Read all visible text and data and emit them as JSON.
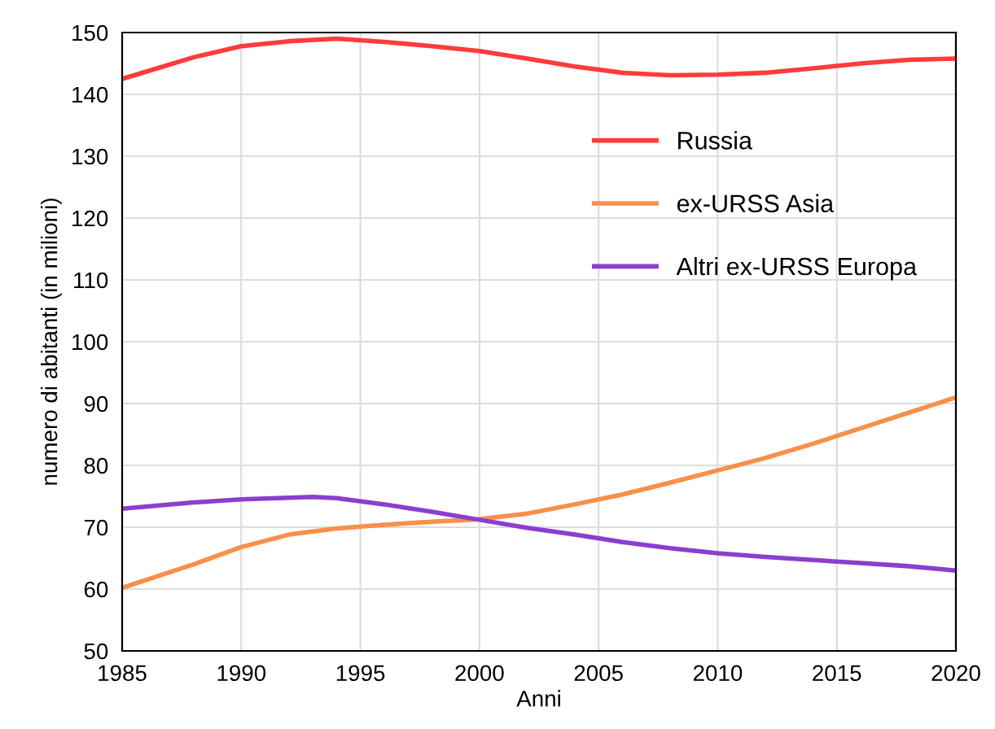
{
  "chart_data": {
    "type": "line",
    "xlabel": "Anni",
    "ylabel": "numero di abitanti (in milioni)",
    "xlim": [
      1985,
      2020
    ],
    "xticks": [
      1985,
      1990,
      1995,
      2000,
      2005,
      2010,
      2015,
      2020
    ],
    "ylim": [
      50,
      150
    ],
    "yticks": [
      50,
      60,
      70,
      80,
      90,
      100,
      110,
      120,
      130,
      140,
      150
    ],
    "grid": true,
    "legend": "right",
    "marker": "none",
    "line_style": "solid",
    "series": [
      {
        "name": "Russia",
        "color": "#ff3b3b",
        "x": [
          1985,
          1988,
          1990,
          1992,
          1994,
          1996,
          1998,
          2000,
          2002,
          2004,
          2006,
          2008,
          2010,
          2012,
          2014,
          2016,
          2018,
          2020
        ],
        "values": [
          142.5,
          146,
          147.8,
          148.6,
          149,
          148.5,
          147.8,
          147,
          145.8,
          144.5,
          143.5,
          143.1,
          143.2,
          143.5,
          144.2,
          145,
          145.6,
          145.8
        ]
      },
      {
        "name": "ex-URSS Asia",
        "color": "#f7904a",
        "x": [
          1985,
          1988,
          1990,
          1992,
          1994,
          1996,
          1998,
          2000,
          2002,
          2004,
          2006,
          2008,
          2010,
          2012,
          2014,
          2016,
          2018,
          2020
        ],
        "values": [
          60.2,
          64,
          66.8,
          68.8,
          69.8,
          70.4,
          70.9,
          71.3,
          72.2,
          73.7,
          75.3,
          77.2,
          79.2,
          81.2,
          83.5,
          86,
          88.5,
          91
        ]
      },
      {
        "name": "Altri ex-URSS Europa",
        "color": "#8a3fcf",
        "x": [
          1985,
          1988,
          1990,
          1993,
          1994,
          1996,
          1998,
          2000,
          2002,
          2004,
          2006,
          2008,
          2010,
          2012,
          2014,
          2016,
          2018,
          2020
        ],
        "values": [
          73,
          74,
          74.5,
          74.9,
          74.7,
          73.7,
          72.5,
          71.2,
          69.9,
          68.8,
          67.6,
          66.6,
          65.8,
          65.2,
          64.7,
          64.2,
          63.7,
          63
        ]
      }
    ]
  }
}
